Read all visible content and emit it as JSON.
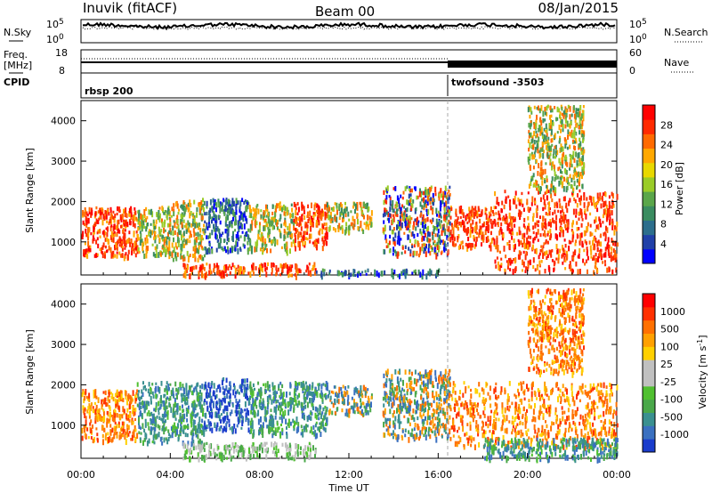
{
  "header": {
    "station": "Inuvik (fitACF)",
    "beam": "Beam 00",
    "date": "08/Jan/2015"
  },
  "panels": {
    "nsky": {
      "label": "N.Sky",
      "ticks_left": [
        "10^5",
        "10^0"
      ],
      "ticks_right": [
        "10^5",
        "10^0"
      ],
      "right_label": "N.Search"
    },
    "freq": {
      "label_line1": "Freq.",
      "label_line2": "[MHz]",
      "ticks_left": [
        "18",
        "8"
      ],
      "ticks_right": [
        "60",
        "0"
      ],
      "right_label": "Nave"
    },
    "cpid": {
      "label": "CPID",
      "programs": [
        {
          "name": "rbsp 200",
          "start_hour": 0
        },
        {
          "name": "twofsound -3503",
          "start_hour": 16.5
        }
      ]
    }
  },
  "chart_data": [
    {
      "type": "heatmap",
      "title": "",
      "ylabel": "Slant Range [km]",
      "xlabel": "",
      "xlim": [
        0,
        24
      ],
      "ylim": [
        180,
        4500
      ],
      "yticks": [
        "1000",
        "2000",
        "3000",
        "4000"
      ],
      "colorbar": {
        "label": "Power [dB]",
        "ticks": [
          "28",
          "24",
          "20",
          "16",
          "12",
          "8",
          "4"
        ],
        "colors": [
          "#0000ff",
          "#2040a8",
          "#2c6e8c",
          "#3a8c60",
          "#5aa64a",
          "#9acc28",
          "#e8d800",
          "#ffa800",
          "#ff6a00",
          "#ff2a00",
          "#ff0000"
        ]
      },
      "scatter_regions": [
        {
          "t0": 0.0,
          "t1": 2.5,
          "r0": 650,
          "r1": 1900,
          "level": "high"
        },
        {
          "t0": 2.5,
          "t1": 4.0,
          "r0": 700,
          "r1": 1900,
          "level": "mid"
        },
        {
          "t0": 4.0,
          "t1": 5.5,
          "r0": 600,
          "r1": 2100,
          "level": "mid"
        },
        {
          "t0": 5.5,
          "t1": 7.5,
          "r0": 800,
          "r1": 2100,
          "level": "low"
        },
        {
          "t0": 7.5,
          "t1": 9.5,
          "r0": 800,
          "r1": 2000,
          "level": "mid"
        },
        {
          "t0": 9.5,
          "t1": 11.0,
          "r0": 900,
          "r1": 2000,
          "level": "high"
        },
        {
          "t0": 11.0,
          "t1": 13.0,
          "r0": 1300,
          "r1": 2000,
          "level": "mid"
        },
        {
          "t0": 13.5,
          "t1": 16.5,
          "r0": 700,
          "r1": 2400,
          "level": "mixed"
        },
        {
          "t0": 16.5,
          "t1": 18.5,
          "r0": 900,
          "r1": 1900,
          "level": "high"
        },
        {
          "t0": 18.5,
          "t1": 24.0,
          "r0": 300,
          "r1": 2300,
          "level": "high"
        },
        {
          "t0": 4.5,
          "t1": 10.5,
          "r0": 200,
          "r1": 500,
          "level": "high"
        },
        {
          "t0": 10.5,
          "t1": 16.0,
          "r0": 200,
          "r1": 350,
          "level": "low"
        },
        {
          "t0": 20.0,
          "t1": 22.5,
          "r0": 2300,
          "r1": 4400,
          "level": "mid"
        }
      ]
    },
    {
      "type": "heatmap",
      "title": "",
      "ylabel": "Slant Range [km]",
      "xlabel": "Time UT",
      "xlim": [
        0,
        24
      ],
      "ylim": [
        180,
        4500
      ],
      "xticks": [
        "00:00",
        "04:00",
        "08:00",
        "12:00",
        "16:00",
        "20:00",
        "00:00"
      ],
      "yticks": [
        "1000",
        "2000",
        "3000",
        "4000"
      ],
      "colorbar": {
        "label_main": "Velocity",
        "label_unit": "[m s",
        "label_exp": "-1",
        "label_close": "]",
        "ticks": [
          "1000",
          "500",
          "100",
          "25",
          "-25",
          "-100",
          "-500",
          "-1000"
        ],
        "colors": [
          "#1a3ccc",
          "#3a70c0",
          "#3a9090",
          "#4aa84a",
          "#50c030",
          "#c0c0c0",
          "#c0c0c0",
          "#ffd000",
          "#ffa000",
          "#ff7000",
          "#ff3000",
          "#ff0000"
        ]
      },
      "scatter_regions": [
        {
          "t0": 0.0,
          "t1": 2.5,
          "r0": 650,
          "r1": 1900,
          "vel": "away"
        },
        {
          "t0": 2.5,
          "t1": 5.5,
          "r0": 600,
          "r1": 2100,
          "vel": "toward"
        },
        {
          "t0": 5.5,
          "t1": 7.5,
          "r0": 900,
          "r1": 2200,
          "vel": "strong-toward"
        },
        {
          "t0": 7.5,
          "t1": 11.0,
          "r0": 800,
          "r1": 2100,
          "vel": "toward"
        },
        {
          "t0": 11.0,
          "t1": 13.0,
          "r0": 1300,
          "r1": 2000,
          "vel": "mixed"
        },
        {
          "t0": 13.5,
          "t1": 16.5,
          "r0": 700,
          "r1": 2400,
          "vel": "mixed"
        },
        {
          "t0": 16.5,
          "t1": 24.0,
          "r0": 500,
          "r1": 2100,
          "vel": "away"
        },
        {
          "t0": 4.5,
          "t1": 10.5,
          "r0": 200,
          "r1": 600,
          "vel": "ground"
        },
        {
          "t0": 18.0,
          "t1": 24.0,
          "r0": 200,
          "r1": 700,
          "vel": "toward"
        },
        {
          "t0": 20.0,
          "t1": 22.5,
          "r0": 2300,
          "r1": 4400,
          "vel": "away"
        }
      ]
    }
  ]
}
